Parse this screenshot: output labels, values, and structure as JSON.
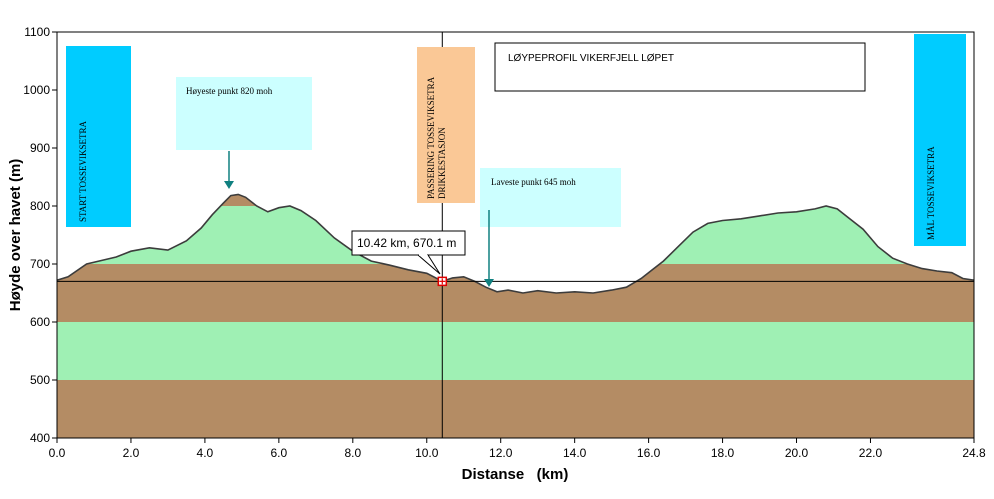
{
  "chart_data": {
    "type": "area",
    "title": "LØYPEPROFIL VIKERFJELL  LØPET",
    "xlabel": "Distanse   (km)",
    "ylabel": "Høyde over havet (m)",
    "xlim": [
      0,
      24.8
    ],
    "ylim": [
      400,
      1100
    ],
    "xticks": [
      "0.0",
      "2.0",
      "4.0",
      "6.0",
      "8.0",
      "10.0",
      "12.0",
      "14.0",
      "16.0",
      "18.0",
      "20.0",
      "22.0",
      "24.8"
    ],
    "xtick_values": [
      0,
      2,
      4,
      6,
      8,
      10,
      12,
      14,
      16,
      18,
      20,
      22,
      24.8
    ],
    "yticks": [
      "400",
      "500",
      "600",
      "700",
      "800",
      "900",
      "1000",
      "1100"
    ],
    "ytick_values": [
      400,
      500,
      600,
      700,
      800,
      900,
      1000,
      1100
    ],
    "band_colors": [
      "#b48c64",
      "#9ff0b4"
    ],
    "line_color": "#3c3c3c",
    "series": [
      {
        "x": [
          0,
          0.3,
          0.8,
          1.2,
          1.6,
          2.0,
          2.5,
          3.0,
          3.5,
          3.9,
          4.2,
          4.5,
          4.7,
          4.9,
          5.1,
          5.4,
          5.7,
          6.0,
          6.3,
          6.6,
          7.0,
          7.5,
          8.0,
          8.5,
          9.0,
          9.5,
          10.0,
          10.42,
          10.7,
          11.0,
          11.3,
          11.6,
          11.9,
          12.2,
          12.6,
          13.0,
          13.5,
          14.0,
          14.5,
          15.0,
          15.4,
          15.8,
          16.1,
          16.4,
          16.8,
          17.2,
          17.6,
          18.0,
          18.5,
          19.0,
          19.5,
          20.0,
          20.5,
          20.8,
          21.1,
          21.4,
          21.8,
          22.2,
          22.6,
          23.0,
          23.4,
          23.8,
          24.2,
          24.5,
          24.8
        ],
        "y": [
          672,
          678,
          700,
          706,
          712,
          722,
          728,
          724,
          740,
          762,
          785,
          805,
          818,
          820,
          815,
          800,
          790,
          797,
          800,
          792,
          775,
          745,
          722,
          705,
          698,
          690,
          684,
          670.1,
          676,
          678,
          670,
          660,
          652,
          655,
          650,
          654,
          650,
          652,
          650,
          655,
          660,
          675,
          690,
          705,
          730,
          755,
          770,
          775,
          778,
          783,
          788,
          790,
          795,
          800,
          795,
          780,
          760,
          730,
          710,
          700,
          692,
          688,
          685,
          675,
          672
        ]
      }
    ],
    "cursor": {
      "x": 10.42,
      "y": 670.1
    },
    "readout_label": "10.42 km, 670.1 m",
    "annotations": {
      "start_label": "START TOSSEVIKSETRA",
      "start_color": "#00ccff",
      "finish_label": "MÅL TOSSEVIKSETRA",
      "finish_color": "#00ccff",
      "passing_label_line1": "PASSERING TOSSEVIKSETRA",
      "passing_label_line2": "DRIKKESTASJON",
      "passing_color": "#fac896",
      "highest_text": "Høyeste punkt 820 moh",
      "highest_color": "#ccffff",
      "lowest_text": "Laveste punkt 645 moh",
      "lowest_color": "#ccffff",
      "arrow_color": "#108080"
    }
  }
}
